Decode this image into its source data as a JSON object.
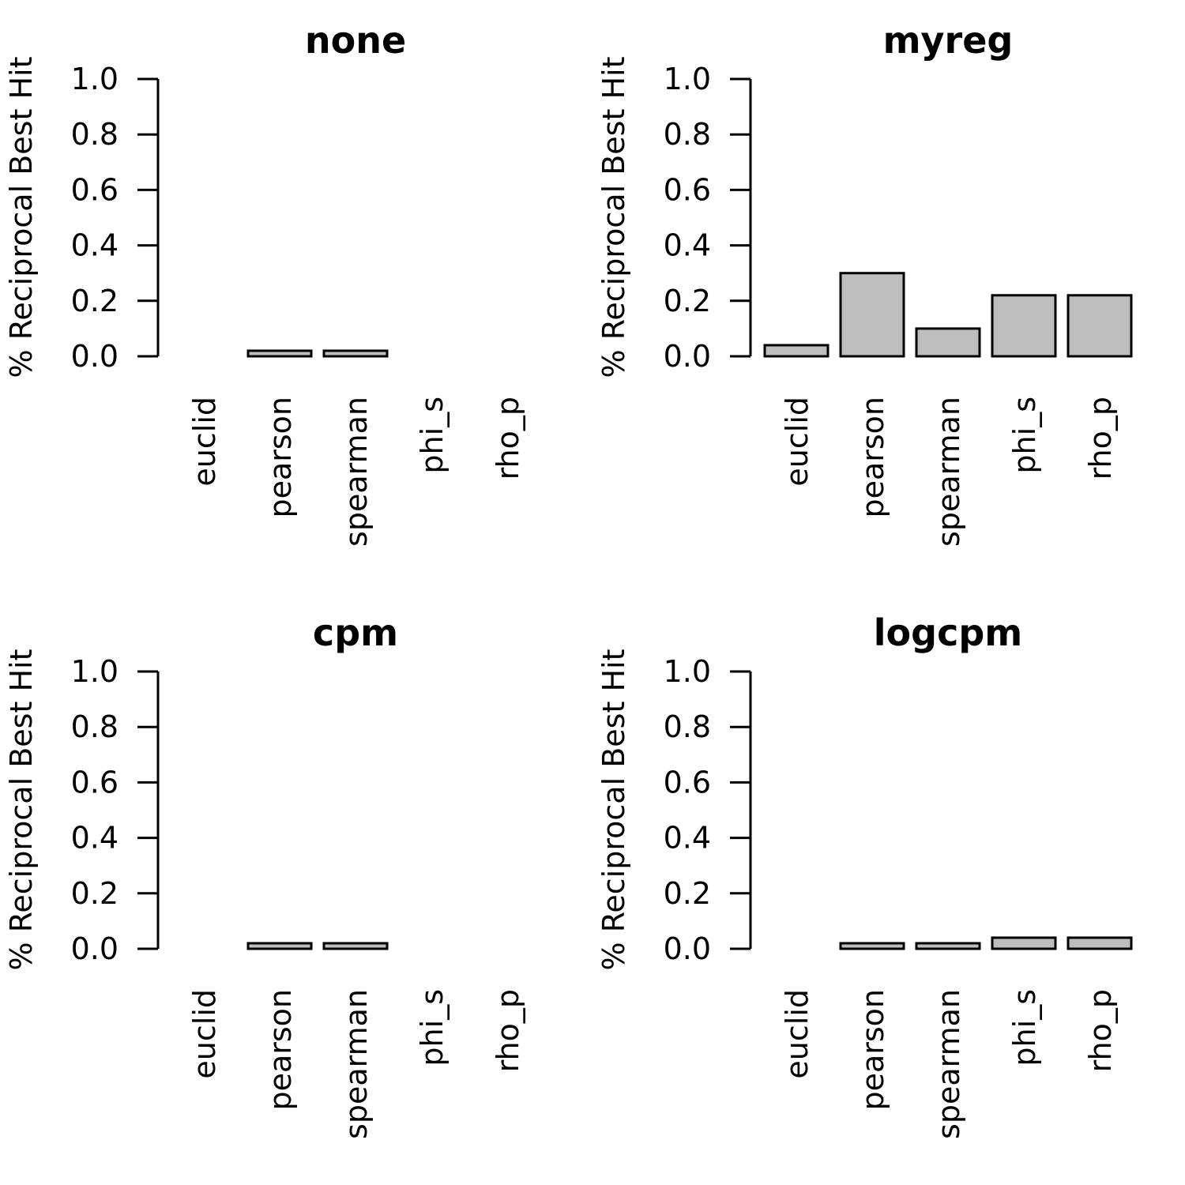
{
  "chart_data": [
    {
      "type": "bar",
      "title": "none",
      "ylabel": "% Reciprocal Best Hit",
      "xlabel": "",
      "ylim": [
        0,
        1
      ],
      "yticks": [
        "0.0",
        "0.2",
        "0.4",
        "0.6",
        "0.8",
        "1.0"
      ],
      "categories": [
        "euclid",
        "pearson",
        "spearman",
        "phi_s",
        "rho_p"
      ],
      "values": [
        0.0,
        0.02,
        0.02,
        0.0,
        0.0
      ],
      "bar_color": "#bebebe",
      "grid": false
    },
    {
      "type": "bar",
      "title": "myreg",
      "ylabel": "% Reciprocal Best Hit",
      "xlabel": "",
      "ylim": [
        0,
        1
      ],
      "yticks": [
        "0.0",
        "0.2",
        "0.4",
        "0.6",
        "0.8",
        "1.0"
      ],
      "categories": [
        "euclid",
        "pearson",
        "spearman",
        "phi_s",
        "rho_p"
      ],
      "values": [
        0.04,
        0.3,
        0.1,
        0.22,
        0.22
      ],
      "bar_color": "#bebebe",
      "grid": false
    },
    {
      "type": "bar",
      "title": "cpm",
      "ylabel": "% Reciprocal Best Hit",
      "xlabel": "",
      "ylim": [
        0,
        1
      ],
      "yticks": [
        "0.0",
        "0.2",
        "0.4",
        "0.6",
        "0.8",
        "1.0"
      ],
      "categories": [
        "euclid",
        "pearson",
        "spearman",
        "phi_s",
        "rho_p"
      ],
      "values": [
        0.0,
        0.02,
        0.02,
        0.0,
        0.0
      ],
      "bar_color": "#bebebe",
      "grid": false
    },
    {
      "type": "bar",
      "title": "logcpm",
      "ylabel": "% Reciprocal Best Hit",
      "xlabel": "",
      "ylim": [
        0,
        1
      ],
      "yticks": [
        "0.0",
        "0.2",
        "0.4",
        "0.6",
        "0.8",
        "1.0"
      ],
      "categories": [
        "euclid",
        "pearson",
        "spearman",
        "phi_s",
        "rho_p"
      ],
      "values": [
        0.0,
        0.02,
        0.02,
        0.04,
        0.04
      ],
      "bar_color": "#bebebe",
      "grid": false
    }
  ]
}
